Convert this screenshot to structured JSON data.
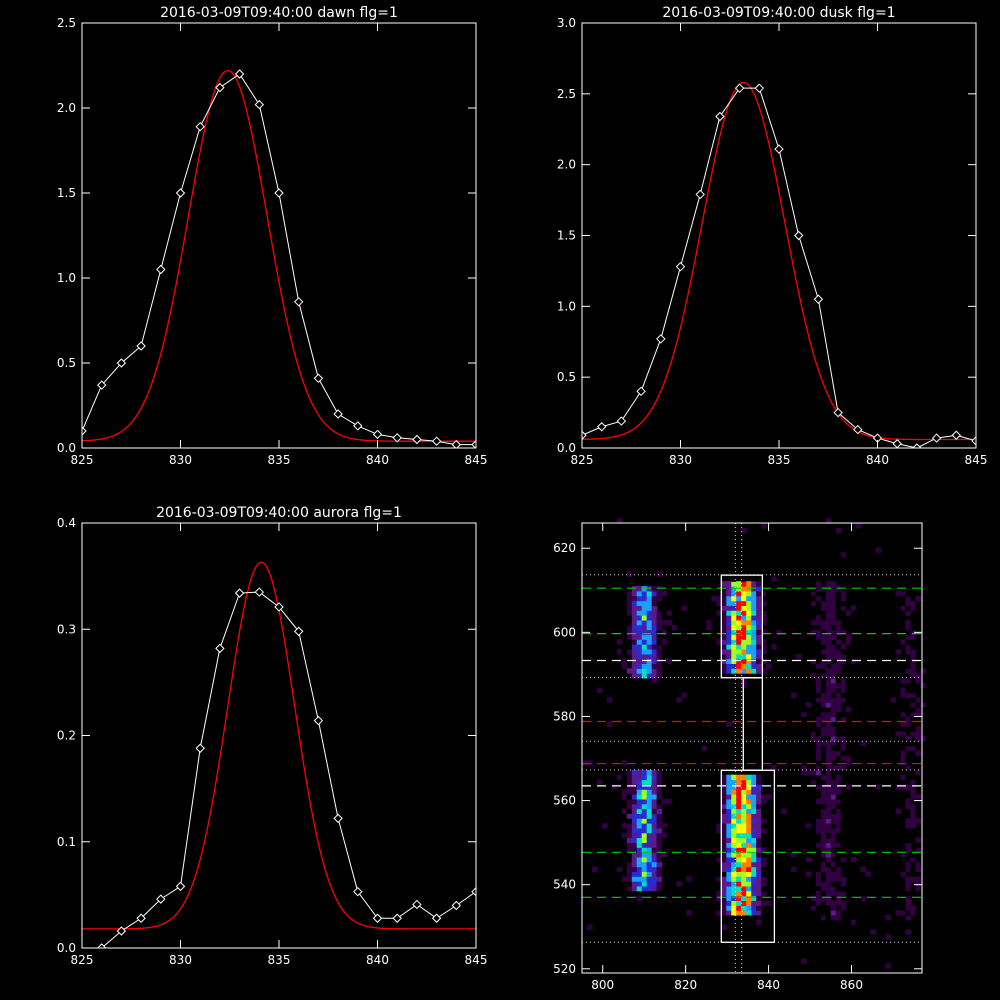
{
  "colors": {
    "background": "#000000",
    "axes": "#ffffff",
    "data_line": "#ffffff",
    "fit_line": "#ff0000",
    "box": "#ffffff",
    "green_dash": "#00cc00",
    "white_dash": "#ffffff",
    "red_dash": "#ff0000",
    "dotted_line": "#cfcfcf"
  },
  "chart_data": [
    {
      "type": "line",
      "title": "2016-03-09T09:40:00 dawn flg=1",
      "xlim": [
        825,
        845
      ],
      "ylim": [
        0,
        2.5
      ],
      "x_ticks": [
        825,
        830,
        835,
        840,
        845
      ],
      "y_ticks": [
        "0.0",
        "0.5",
        "1.0",
        "1.5",
        "2.0",
        "2.5"
      ],
      "marker": "diamond",
      "series": [
        {
          "role": "data",
          "x": [
            825,
            826,
            827,
            828,
            829,
            830,
            831,
            832,
            833,
            834,
            835,
            836,
            837,
            838,
            839,
            840,
            841,
            842,
            843,
            844,
            845
          ],
          "y": [
            0.1,
            0.37,
            0.5,
            0.6,
            1.05,
            1.5,
            1.89,
            2.12,
            2.2,
            2.02,
            1.5,
            0.86,
            0.41,
            0.2,
            0.13,
            0.08,
            0.06,
            0.05,
            0.04,
            0.02,
            0.02
          ]
        },
        {
          "role": "fit",
          "model": "gaussian",
          "amplitude": 2.18,
          "center": 832.4,
          "sigma": 2.0,
          "offset": 0.04
        }
      ]
    },
    {
      "type": "line",
      "title": "2016-03-09T09:40:00 dusk flg=1",
      "xlim": [
        825,
        845
      ],
      "ylim": [
        0,
        3.0
      ],
      "x_ticks": [
        825,
        830,
        835,
        840,
        845
      ],
      "y_ticks": [
        "0.0",
        "0.5",
        "1.0",
        "1.5",
        "2.0",
        "2.5",
        "3.0"
      ],
      "marker": "diamond",
      "series": [
        {
          "role": "data",
          "x": [
            825,
            826,
            827,
            828,
            829,
            830,
            831,
            832,
            833,
            834,
            835,
            836,
            837,
            838,
            839,
            840,
            841,
            842,
            843,
            844,
            845
          ],
          "y": [
            0.09,
            0.15,
            0.19,
            0.4,
            0.77,
            1.28,
            1.79,
            2.34,
            2.54,
            2.54,
            2.11,
            1.5,
            1.05,
            0.25,
            0.13,
            0.07,
            0.03,
            0.0,
            0.07,
            0.09,
            0.05
          ]
        },
        {
          "role": "fit",
          "model": "gaussian",
          "amplitude": 2.52,
          "center": 833.2,
          "sigma": 2.1,
          "offset": 0.06
        }
      ]
    },
    {
      "type": "line",
      "title": "2016-03-09T09:40:00 aurora flg=1",
      "xlim": [
        825,
        845
      ],
      "ylim": [
        0,
        0.4
      ],
      "x_ticks": [
        825,
        830,
        835,
        840,
        845
      ],
      "y_ticks": [
        "0.0",
        "0.1",
        "0.2",
        "0.3",
        "0.4"
      ],
      "marker": "diamond",
      "series": [
        {
          "role": "data",
          "x": [
            826,
            827,
            828,
            829,
            830,
            831,
            832,
            833,
            834,
            835,
            836,
            837,
            838,
            839,
            840,
            841,
            842,
            843,
            844,
            845
          ],
          "y": [
            0.0,
            0.016,
            0.028,
            0.046,
            0.058,
            0.188,
            0.282,
            0.334,
            0.335,
            0.321,
            0.298,
            0.214,
            0.122,
            0.053,
            0.028,
            0.028,
            0.041,
            0.028,
            0.04,
            0.053
          ]
        },
        {
          "role": "fit",
          "model": "gaussian",
          "amplitude": 0.345,
          "center": 834.1,
          "sigma": 1.7,
          "offset": 0.018
        }
      ]
    },
    {
      "type": "heatmap",
      "title": "",
      "xlim": [
        795,
        877
      ],
      "ylim": [
        519,
        626
      ],
      "x_ticks": [
        800,
        820,
        840,
        860
      ],
      "y_ticks": [
        520,
        540,
        560,
        580,
        600,
        620
      ],
      "colormap": [
        "#000000",
        "#300040",
        "#5a1a8a",
        "#2a2ad0",
        "#1aa0ff",
        "#00e0c0",
        "#a0ff20",
        "#ffff00",
        "#ff8000",
        "#ff0000"
      ],
      "bands": [
        {
          "x_center": 809.5,
          "x_width": 2.2,
          "y_range": [
            589,
            610
          ],
          "intensity": 0.42
        },
        {
          "x_center": 809.5,
          "x_width": 2.2,
          "y_range": [
            538,
            567
          ],
          "intensity": 0.5
        },
        {
          "x_center": 833.0,
          "x_width": 2.4,
          "y_range": [
            590,
            611
          ],
          "intensity": 0.85
        },
        {
          "x_center": 833.0,
          "x_width": 2.4,
          "y_range": [
            532,
            566
          ],
          "intensity": 0.85
        },
        {
          "x_center": 854.0,
          "x_width": 3.0,
          "y_range": [
            531,
            611
          ],
          "intensity": 0.12
        },
        {
          "x_center": 873.5,
          "x_width": 2.0,
          "y_range": [
            531,
            611
          ],
          "intensity": 0.08
        }
      ],
      "boxes": [
        {
          "x": [
            828.6,
            838.5
          ],
          "y": [
            589.2,
            613.6
          ]
        },
        {
          "x": [
            828.6,
            841.4
          ],
          "y": [
            526.3,
            567.2
          ]
        },
        {
          "x": [
            833.9,
            838.5
          ],
          "y": [
            567.2,
            589.2
          ]
        }
      ],
      "horizontal_lines": [
        {
          "y": 610.5,
          "style": "dashed",
          "color": "green"
        },
        {
          "y": 599.7,
          "style": "dashed",
          "color": "green"
        },
        {
          "y": 593.3,
          "style": "dashed",
          "color": "white"
        },
        {
          "y": 578.8,
          "style": "dashed",
          "color": "red"
        },
        {
          "y": 568.8,
          "style": "dashed",
          "color": "red"
        },
        {
          "y": 563.5,
          "style": "dashed",
          "color": "white"
        },
        {
          "y": 547.7,
          "style": "dashed",
          "color": "green"
        },
        {
          "y": 537.0,
          "style": "dashed",
          "color": "green"
        },
        {
          "y": 613.7,
          "style": "dotted",
          "color": "grey"
        },
        {
          "y": 589.3,
          "style": "dotted",
          "color": "grey"
        },
        {
          "y": 574.1,
          "style": "dotted",
          "color": "grey"
        },
        {
          "y": 567.3,
          "style": "dotted",
          "color": "grey"
        },
        {
          "y": 526.3,
          "style": "dotted",
          "color": "grey"
        }
      ],
      "vertical_lines": [
        {
          "x": 832.0,
          "style": "dotted"
        },
        {
          "x": 833.5,
          "style": "dotted"
        }
      ]
    }
  ]
}
